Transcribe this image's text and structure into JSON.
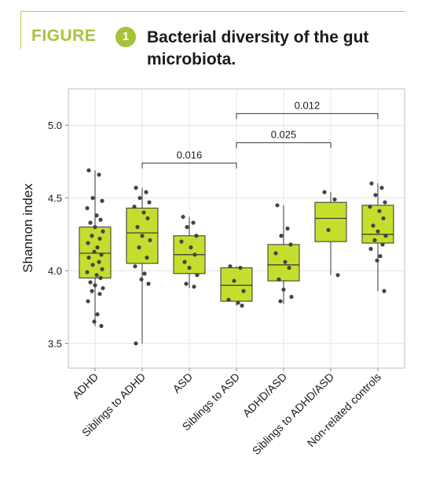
{
  "header": {
    "figure_word": "FIGURE",
    "figure_number": "1",
    "title": "Bacterial diversity of the gut microbiota."
  },
  "colors": {
    "accent": "#a5c33a",
    "box_fill": "#c5de2e",
    "point": "#444444",
    "grid": "#e4e4e4",
    "panel_border": "#bdbdbd"
  },
  "chart_data": {
    "type": "box",
    "ylabel": "Shannon index",
    "xlabel": "",
    "ylim": [
      3.33,
      5.25
    ],
    "yticks": [
      3.5,
      4.0,
      4.5,
      5.0
    ],
    "ytick_labels": [
      "3.5",
      "4.0",
      "4.5",
      "5.0"
    ],
    "grid": true,
    "categories": [
      "ADHD",
      "Siblings to ADHD",
      "ASD",
      "Siblings to ASD",
      "ADHD/ASD",
      "Siblings to ADHD/ASD",
      "Non-related controls"
    ],
    "boxes": [
      {
        "q1": 3.95,
        "median": 4.12,
        "q3": 4.3,
        "whisker_low": 3.62,
        "whisker_high": 4.69
      },
      {
        "q1": 4.05,
        "median": 4.26,
        "q3": 4.43,
        "whisker_low": 3.5,
        "whisker_high": 4.57
      },
      {
        "q1": 3.98,
        "median": 4.11,
        "q3": 4.24,
        "whisker_low": 3.88,
        "whisker_high": 4.37
      },
      {
        "q1": 3.79,
        "median": 3.9,
        "q3": 4.02,
        "whisker_low": 3.76,
        "whisker_high": 4.03
      },
      {
        "q1": 3.93,
        "median": 4.04,
        "q3": 4.18,
        "whisker_low": 3.77,
        "whisker_high": 4.45
      },
      {
        "q1": 4.2,
        "median": 4.36,
        "q3": 4.47,
        "whisker_low": 3.97,
        "whisker_high": 4.54
      },
      {
        "q1": 4.19,
        "median": 4.25,
        "q3": 4.45,
        "whisker_low": 3.86,
        "whisker_high": 4.6
      }
    ],
    "points": [
      [
        4.69,
        4.66,
        4.5,
        4.48,
        4.43,
        4.38,
        4.35,
        4.33,
        4.3,
        4.27,
        4.24,
        4.22,
        4.19,
        4.16,
        4.13,
        4.11,
        4.09,
        4.06,
        4.04,
        4.01,
        3.99,
        3.97,
        3.95,
        3.92,
        3.9,
        3.88,
        3.86,
        3.84,
        3.79,
        3.7,
        3.65,
        3.62
      ],
      [
        4.57,
        4.54,
        4.5,
        4.47,
        4.44,
        4.4,
        4.36,
        4.3,
        4.24,
        4.21,
        4.16,
        4.09,
        4.03,
        3.98,
        3.94,
        3.91,
        3.5
      ],
      [
        4.37,
        4.33,
        4.3,
        4.24,
        4.2,
        4.16,
        4.11,
        4.06,
        4.02,
        3.97,
        3.91,
        3.89
      ],
      [
        4.03,
        4.02,
        3.93,
        3.86,
        3.8,
        3.78,
        3.76
      ],
      [
        4.45,
        4.29,
        4.24,
        4.18,
        4.12,
        4.06,
        4.02,
        3.94,
        3.87,
        3.82,
        3.79
      ],
      [
        4.54,
        4.49,
        4.28,
        3.97
      ],
      [
        4.6,
        4.57,
        4.52,
        4.47,
        4.44,
        4.41,
        4.36,
        4.31,
        4.27,
        4.24,
        4.21,
        4.18,
        4.15,
        4.1,
        4.07,
        3.86
      ]
    ],
    "comparisons": [
      {
        "from": 1,
        "to": 3,
        "y": 4.74,
        "label": "0.016"
      },
      {
        "from": 3,
        "to": 5,
        "y": 4.88,
        "label": "0.025"
      },
      {
        "from": 3,
        "to": 6,
        "y": 5.08,
        "label": "0.012"
      }
    ]
  }
}
